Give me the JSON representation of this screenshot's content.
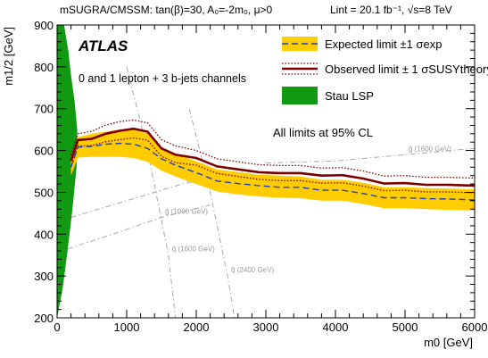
{
  "header": {
    "model_text": "mSUGRA/CMSSM: tan(β)=30, A₀=-2m₀, μ>0",
    "lumi_text": "Lint = 20.1 fb⁻¹, √s=8 TeV"
  },
  "labels": {
    "experiment": "ATLAS",
    "channel": "0 and 1 lepton + 3 b-jets channels",
    "cl_note": "All limits at 95% CL"
  },
  "colors": {
    "band": "#ffcc00",
    "expected": "#1f3fbf",
    "observed": "#7a0000",
    "stau": "#119911",
    "contour": "#a8a8a8"
  },
  "legend": [
    {
      "label": "Expected limit ±1 σexp",
      "kind": "band-dashed"
    },
    {
      "label": "Observed limit ± 1 σSUSYtheory",
      "kind": "solid-dotted"
    },
    {
      "label": "Stau LSP",
      "kind": "fill"
    }
  ],
  "chart_data": {
    "type": "line",
    "title": "",
    "xlabel": "m0 [GeV]",
    "ylabel": "m1/2 [GeV]",
    "xlim": [
      0,
      6000
    ],
    "ylim": [
      200,
      900
    ],
    "xticks": [
      0,
      1000,
      2000,
      3000,
      4000,
      5000,
      6000
    ],
    "yticks": [
      200,
      300,
      400,
      500,
      600,
      700,
      800,
      900
    ],
    "grid": false,
    "legend_position": "top-right",
    "x": [
      200,
      300,
      500,
      700,
      900,
      1100,
      1300,
      1500,
      1700,
      2000,
      2300,
      2600,
      2900,
      3200,
      3500,
      3800,
      4100,
      4400,
      4700,
      5000,
      5300,
      5600,
      6000
    ],
    "series": [
      {
        "name": "Observed limit",
        "style": "solid",
        "values": [
          575,
          625,
          628,
          640,
          647,
          652,
          645,
          605,
          590,
          582,
          562,
          555,
          548,
          546,
          546,
          540,
          541,
          533,
          521,
          522,
          518,
          518,
          516
        ]
      },
      {
        "name": "Observed +1σ theory",
        "style": "dotted",
        "values": [
          590,
          640,
          646,
          661,
          669,
          673,
          666,
          626,
          611,
          600,
          580,
          573,
          566,
          564,
          564,
          558,
          559,
          551,
          539,
          540,
          536,
          536,
          534
        ]
      },
      {
        "name": "Observed -1σ theory",
        "style": "dotted",
        "values": [
          560,
          611,
          612,
          621,
          626,
          630,
          625,
          586,
          571,
          565,
          545,
          538,
          531,
          528,
          528,
          522,
          523,
          515,
          504,
          505,
          501,
          501,
          499
        ]
      },
      {
        "name": "Expected limit",
        "style": "dashed",
        "values": [
          560,
          608,
          610,
          615,
          617,
          615,
          605,
          580,
          565,
          547,
          527,
          521,
          516,
          512,
          512,
          505,
          505,
          497,
          487,
          487,
          485,
          484,
          482
        ]
      },
      {
        "name": "Expected +1σ exp",
        "style": "band-top",
        "values": [
          585,
          632,
          640,
          645,
          650,
          649,
          641,
          607,
          592,
          574,
          555,
          548,
          542,
          540,
          538,
          530,
          530,
          523,
          512,
          512,
          510,
          509,
          507
        ]
      },
      {
        "name": "Expected -1σ exp",
        "style": "band-bottom",
        "values": [
          540,
          583,
          585,
          585,
          585,
          582,
          573,
          552,
          538,
          520,
          502,
          495,
          490,
          487,
          486,
          480,
          480,
          472,
          462,
          462,
          460,
          458,
          457
        ]
      }
    ],
    "stau_lsp_region": {
      "x": [
        0,
        0,
        100,
        160,
        200,
        250,
        290,
        280,
        220,
        150,
        80,
        0
      ],
      "y": [
        200,
        900,
        900,
        840,
        780,
        720,
        650,
        560,
        460,
        360,
        270,
        200
      ]
    },
    "gluino_contours": [
      {
        "label": "g̃ (1000 GeV)",
        "x": [
          150,
          800,
          1500,
          2200
        ],
        "y": [
          365,
          400,
          440,
          470
        ]
      },
      {
        "label": "g̃ (1200 GeV)",
        "x": [
          200,
          1000,
          1800,
          2700
        ],
        "y": [
          440,
          480,
          520,
          550
        ]
      },
      {
        "label": "g̃ (1600 GeV)",
        "x": [
          3000,
          4000,
          5000,
          6000
        ],
        "y": [
          570,
          575,
          590,
          605
        ]
      }
    ],
    "squark_contours": [
      {
        "label": "q̃ (1600 GeV)",
        "x": [
          1000,
          1300,
          1600,
          1700
        ],
        "y": [
          800,
          600,
          350,
          200
        ]
      },
      {
        "label": "q̃ (2400 GeV)",
        "x": [
          1900,
          2200,
          2450,
          2550
        ],
        "y": [
          700,
          500,
          300,
          200
        ]
      }
    ]
  }
}
